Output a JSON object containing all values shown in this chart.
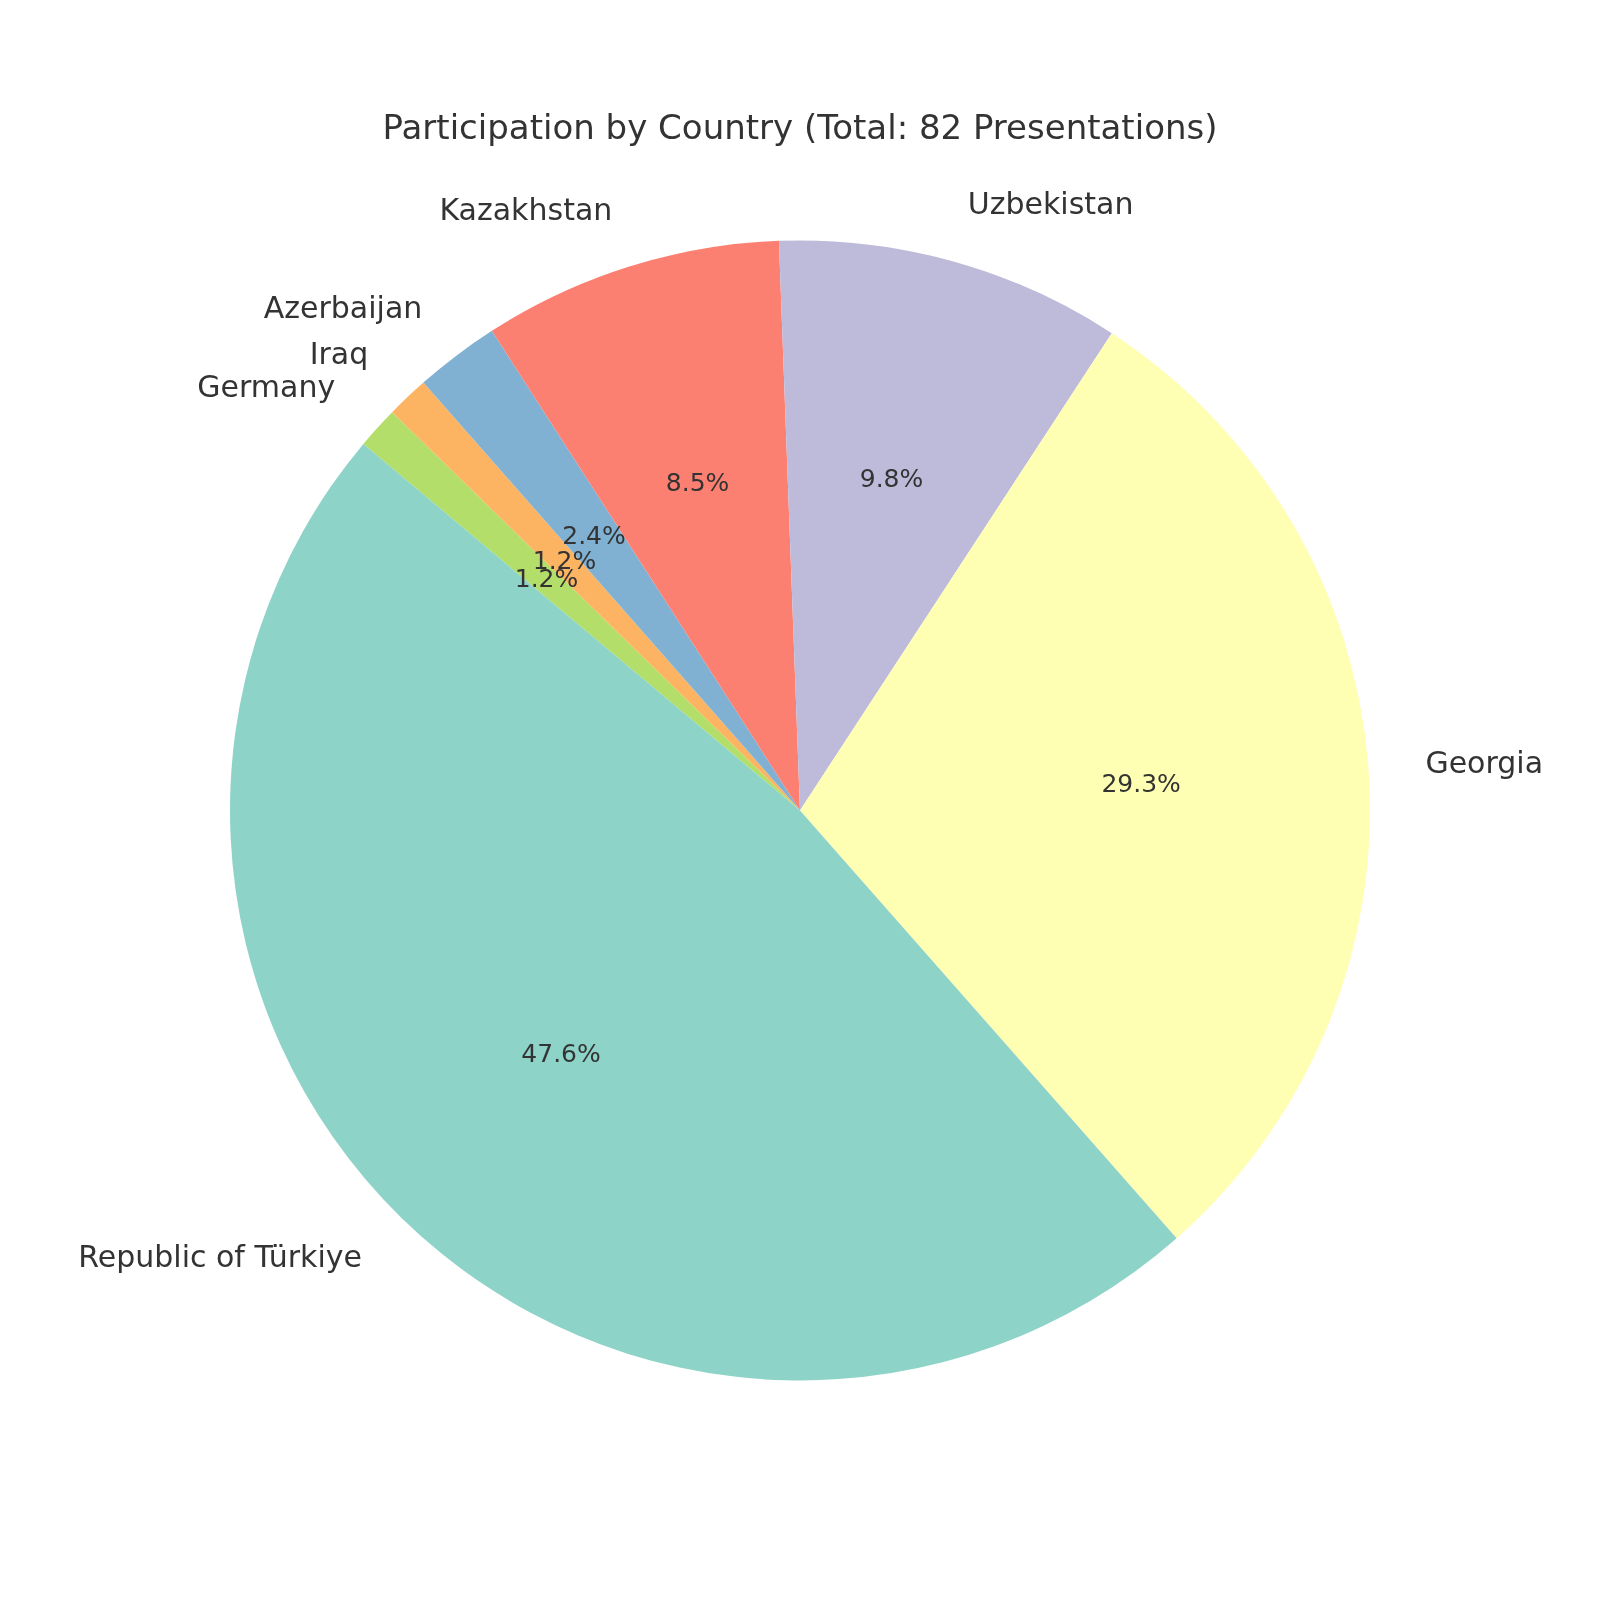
{
  "chart_data": {
    "type": "pie",
    "title": "Participation by Country (Total: 82 Presentations)",
    "categories": [
      "Germany",
      "Iraq",
      "Azerbaijan",
      "Kazakhstan",
      "Uzbekistan",
      "Georgia",
      "Republic of Türkiye"
    ],
    "values": [
      1.2,
      1.2,
      2.4,
      8.5,
      9.8,
      29.3,
      47.6
    ],
    "colors": [
      "#b3de69",
      "#fdb462",
      "#80b1d3",
      "#fb8072",
      "#bebada",
      "#ffffb3",
      "#8dd3c7"
    ],
    "value_labels": [
      "1.2%",
      "1.2%",
      "2.4%",
      "8.5%",
      "9.8%",
      "29.3%",
      "47.6%"
    ],
    "legend": false
  }
}
